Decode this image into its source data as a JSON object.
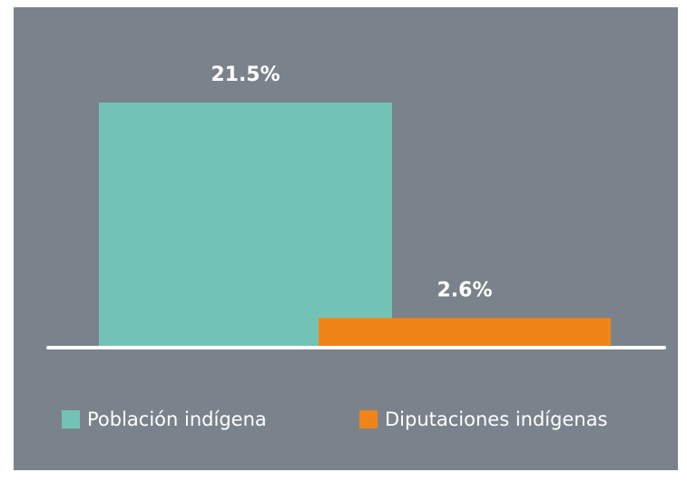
{
  "chart_data": {
    "type": "bar",
    "series": [
      {
        "name": "Población indígena",
        "color": "#72c3b5",
        "values": [
          21.5
        ],
        "value_labels": [
          "21.5%"
        ]
      },
      {
        "name": "Diputaciones indígenas",
        "color": "#f08418",
        "values": [
          2.6
        ],
        "value_labels": [
          "2.6%"
        ]
      }
    ]
  }
}
